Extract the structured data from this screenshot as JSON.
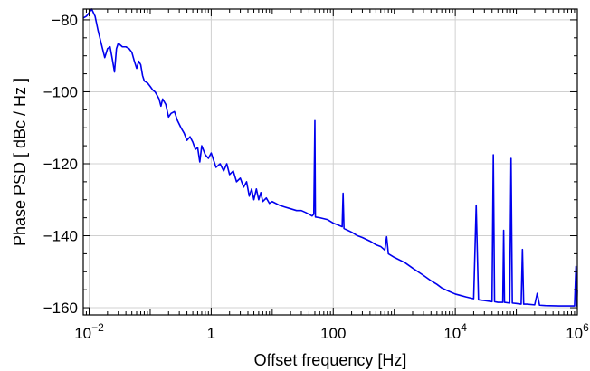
{
  "chart_data": {
    "type": "line",
    "xlabel": "Offset frequency  [Hz]",
    "ylabel": "Phase PSD  [ dBc / Hz ]",
    "x_scale": "log",
    "xlim": [
      0.008,
      1000000
    ],
    "ylim": [
      -162,
      -77
    ],
    "grid": true,
    "x_ticks": [
      {
        "value": 0.01,
        "base": "10",
        "exp": "−2"
      },
      {
        "value": 1,
        "text": "1"
      },
      {
        "value": 100,
        "text": "100"
      },
      {
        "value": 10000,
        "base": "10",
        "exp": "4"
      },
      {
        "value": 1000000,
        "base": "10",
        "exp": "6"
      }
    ],
    "y_ticks": [
      {
        "value": -80,
        "text": "−80"
      },
      {
        "value": -100,
        "text": "−100"
      },
      {
        "value": -120,
        "text": "−120"
      },
      {
        "value": -140,
        "text": "−140"
      },
      {
        "value": -160,
        "text": "−160"
      }
    ],
    "series": [
      {
        "color": "#0000ee",
        "points": [
          [
            0.008,
            -79.5
          ],
          [
            0.009,
            -79
          ],
          [
            0.01,
            -78
          ],
          [
            0.011,
            -77
          ],
          [
            0.0125,
            -79
          ],
          [
            0.014,
            -83
          ],
          [
            0.016,
            -87
          ],
          [
            0.018,
            -90.5
          ],
          [
            0.02,
            -88
          ],
          [
            0.022,
            -87.5
          ],
          [
            0.024,
            -91
          ],
          [
            0.026,
            -94.5
          ],
          [
            0.028,
            -88
          ],
          [
            0.03,
            -86.5
          ],
          [
            0.035,
            -87.5
          ],
          [
            0.04,
            -87.5
          ],
          [
            0.045,
            -88
          ],
          [
            0.05,
            -89
          ],
          [
            0.055,
            -91.5
          ],
          [
            0.06,
            -93.5
          ],
          [
            0.065,
            -91.5
          ],
          [
            0.07,
            -92.5
          ],
          [
            0.075,
            -95.5
          ],
          [
            0.08,
            -97
          ],
          [
            0.09,
            -97.5
          ],
          [
            0.1,
            -98.5
          ],
          [
            0.11,
            -99.5
          ],
          [
            0.12,
            -100
          ],
          [
            0.13,
            -101
          ],
          [
            0.14,
            -102
          ],
          [
            0.15,
            -104
          ],
          [
            0.16,
            -102
          ],
          [
            0.18,
            -103.5
          ],
          [
            0.2,
            -107
          ],
          [
            0.22,
            -106
          ],
          [
            0.25,
            -105.5
          ],
          [
            0.28,
            -108
          ],
          [
            0.32,
            -110
          ],
          [
            0.36,
            -111.5
          ],
          [
            0.4,
            -113.5
          ],
          [
            0.45,
            -112.5
          ],
          [
            0.5,
            -114
          ],
          [
            0.55,
            -116
          ],
          [
            0.6,
            -115.5
          ],
          [
            0.65,
            -119.5
          ],
          [
            0.7,
            -115
          ],
          [
            0.8,
            -117.5
          ],
          [
            0.9,
            -118.5
          ],
          [
            1,
            -117
          ],
          [
            1.2,
            -121
          ],
          [
            1.4,
            -120
          ],
          [
            1.6,
            -122
          ],
          [
            1.8,
            -120
          ],
          [
            2,
            -123
          ],
          [
            2.3,
            -122
          ],
          [
            2.6,
            -125
          ],
          [
            3,
            -124
          ],
          [
            3.4,
            -126.5
          ],
          [
            3.8,
            -125
          ],
          [
            4.2,
            -129
          ],
          [
            4.6,
            -127
          ],
          [
            5,
            -130
          ],
          [
            5.5,
            -127
          ],
          [
            6,
            -130
          ],
          [
            6.5,
            -128
          ],
          [
            7,
            -130.5
          ],
          [
            8,
            -129.5
          ],
          [
            9,
            -131
          ],
          [
            10,
            -130.5
          ],
          [
            13,
            -131.5
          ],
          [
            16,
            -132
          ],
          [
            20,
            -132.5
          ],
          [
            25,
            -133
          ],
          [
            30,
            -133
          ],
          [
            35,
            -133.5
          ],
          [
            40,
            -134
          ],
          [
            45,
            -134.5
          ],
          [
            48,
            -134
          ],
          [
            50,
            -108
          ],
          [
            51,
            -134.8
          ],
          [
            60,
            -135
          ],
          [
            80,
            -135.5
          ],
          [
            100,
            -136.5
          ],
          [
            120,
            -137
          ],
          [
            140,
            -137.5
          ],
          [
            145,
            -128.2
          ],
          [
            150,
            -138
          ],
          [
            200,
            -139
          ],
          [
            250,
            -140
          ],
          [
            300,
            -140.5
          ],
          [
            400,
            -141.5
          ],
          [
            500,
            -142.5
          ],
          [
            600,
            -143
          ],
          [
            700,
            -144
          ],
          [
            750,
            -140.3
          ],
          [
            800,
            -145
          ],
          [
            1000,
            -146
          ],
          [
            1500,
            -147.5
          ],
          [
            2000,
            -149
          ],
          [
            3000,
            -151
          ],
          [
            4000,
            -152.5
          ],
          [
            5000,
            -153.5
          ],
          [
            6000,
            -154.5
          ],
          [
            8000,
            -155.5
          ],
          [
            10000,
            -156.2
          ],
          [
            15000,
            -157
          ],
          [
            20000,
            -157.5
          ],
          [
            22000,
            -131.5
          ],
          [
            24000,
            -157.8
          ],
          [
            30000,
            -158
          ],
          [
            40000,
            -158.3
          ],
          [
            42000,
            -117.5
          ],
          [
            44000,
            -158.3
          ],
          [
            50000,
            -158.5
          ],
          [
            60000,
            -158.5
          ],
          [
            62000,
            -138.5
          ],
          [
            64000,
            -158.5
          ],
          [
            78000,
            -158.7
          ],
          [
            82000,
            -118.5
          ],
          [
            86000,
            -158.7
          ],
          [
            100000,
            -158.8
          ],
          [
            120000,
            -159
          ],
          [
            126000,
            -143.8
          ],
          [
            132000,
            -159
          ],
          [
            150000,
            -159
          ],
          [
            200000,
            -159.2
          ],
          [
            220000,
            -156
          ],
          [
            240000,
            -159.3
          ],
          [
            300000,
            -159.4
          ],
          [
            500000,
            -159.5
          ],
          [
            900000,
            -159.5
          ],
          [
            950000,
            -148.5
          ],
          [
            980000,
            -159.5
          ],
          [
            1000000,
            -155
          ]
        ]
      }
    ]
  }
}
